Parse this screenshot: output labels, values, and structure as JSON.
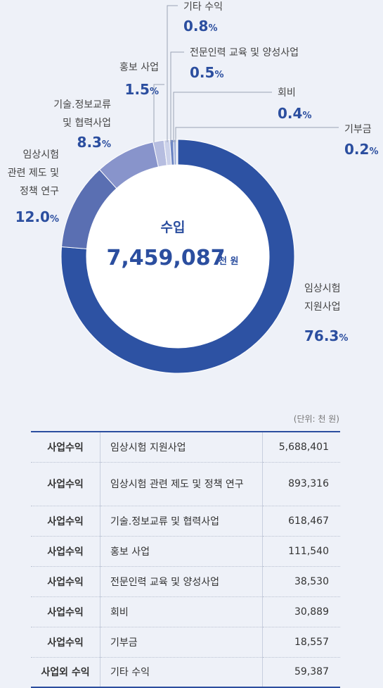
{
  "chart_data": {
    "type": "pie",
    "center_title": "수입",
    "center_value": "7,459,087",
    "center_unit": "천 원",
    "slices": [
      {
        "name_lines": [
          "임상시험",
          "지원사업"
        ],
        "value": 76.3,
        "pct_label": "76.3",
        "color": "#2d52a3"
      },
      {
        "name_lines": [
          "임상시험",
          "관련 제도 및",
          "정책 연구"
        ],
        "value": 12.0,
        "pct_label": "12.0",
        "color": "#5a6fb2"
      },
      {
        "name_lines": [
          "기술.정보교류",
          "및 협력사업"
        ],
        "value": 8.3,
        "pct_label": "8.3",
        "color": "#8894cb"
      },
      {
        "name_lines": [
          "홍보 사업"
        ],
        "value": 1.5,
        "pct_label": "1.5",
        "color": "#b6bde0"
      },
      {
        "name_lines": [
          "기타 수익"
        ],
        "value": 0.8,
        "pct_label": "0.8",
        "color": "#ccd2ea"
      },
      {
        "name_lines": [
          "전문인력 교육 및 양성사업"
        ],
        "value": 0.5,
        "pct_label": "0.5",
        "color": "#6f87c4"
      },
      {
        "name_lines": [
          "회비"
        ],
        "value": 0.4,
        "pct_label": "0.4",
        "color": "#9fb0d8"
      },
      {
        "name_lines": [
          "기부금"
        ],
        "value": 0.2,
        "pct_label": "0.2",
        "color": "#dfe4f2"
      }
    ],
    "pct_suffix": "%"
  },
  "table": {
    "unit_note": "(단위: 천 원)",
    "rows": [
      {
        "category": "사업수익",
        "item": "임상시험 지원사업",
        "amount": "5,688,401"
      },
      {
        "category": "사업수익",
        "item": "임상시험 관련 제도 및 정책 연구",
        "amount": "893,316"
      },
      {
        "category": "사업수익",
        "item": "기술.정보교류 및 협력사업",
        "amount": "618,467"
      },
      {
        "category": "사업수익",
        "item": "홍보 사업",
        "amount": "111,540"
      },
      {
        "category": "사업수익",
        "item": "전문인력 교육 및 양성사업",
        "amount": "38,530"
      },
      {
        "category": "사업수익",
        "item": "회비",
        "amount": "30,889"
      },
      {
        "category": "사업수익",
        "item": "기부금",
        "amount": "18,557"
      },
      {
        "category": "사업외 수익",
        "item": "기타 수익",
        "amount": "59,387"
      }
    ]
  }
}
